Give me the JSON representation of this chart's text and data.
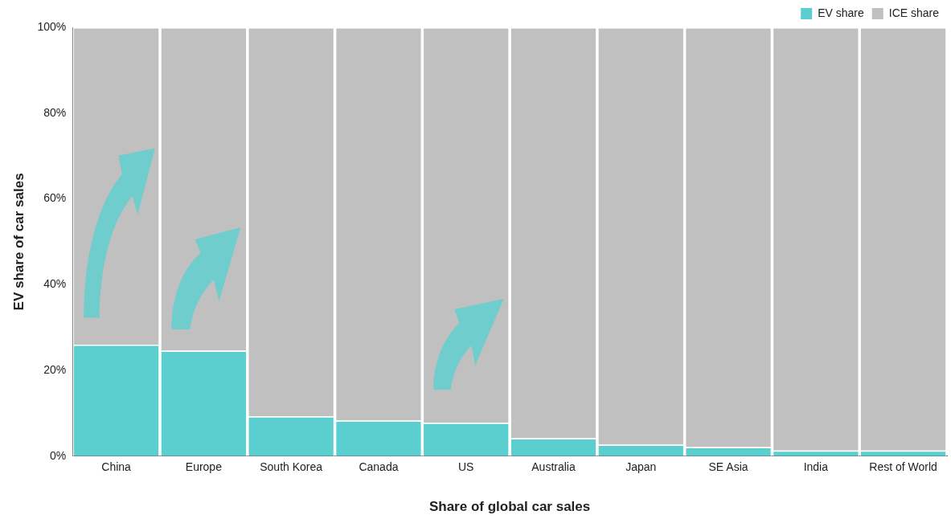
{
  "chart_data": {
    "type": "bar",
    "stacked": true,
    "xlabel": "Share of global car sales",
    "ylabel": "EV share of car sales",
    "categories": [
      "China",
      "Europe",
      "South Korea",
      "Canada",
      "US",
      "Australia",
      "Japan",
      "SE Asia",
      "India",
      "Rest of World"
    ],
    "series": [
      {
        "name": "EV share",
        "color": "#5bcfd0",
        "values": [
          26,
          24.6,
          9.3,
          8.3,
          7.8,
          4.2,
          2.7,
          2.1,
          1.3,
          1.3
        ]
      },
      {
        "name": "ICE share",
        "color": "#c0c0c0",
        "values": [
          74,
          75.4,
          90.7,
          91.7,
          92.2,
          95.8,
          97.3,
          97.9,
          98.7,
          98.7
        ]
      }
    ],
    "ylim": [
      0,
      100
    ],
    "yticks": [
      {
        "value": 0,
        "label": "0%"
      },
      {
        "value": 20,
        "label": "20%"
      },
      {
        "value": 40,
        "label": "40%"
      },
      {
        "value": 60,
        "label": "60%"
      },
      {
        "value": 80,
        "label": "80%"
      },
      {
        "value": 100,
        "label": "100%"
      }
    ],
    "grid": false,
    "legend": "top right"
  }
}
